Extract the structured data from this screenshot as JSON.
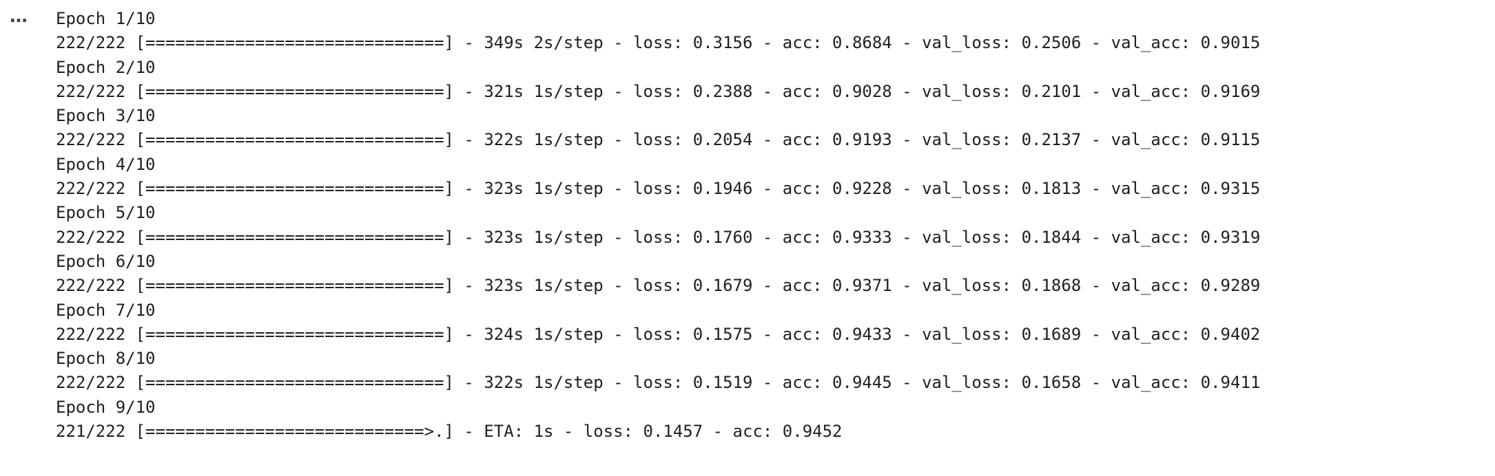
{
  "cell": {
    "collapse_glyph": "…"
  },
  "output_lines": [
    "Epoch 1/10",
    "222/222 [==============================] - 349s 2s/step - loss: 0.3156 - acc: 0.8684 - val_loss: 0.2506 - val_acc: 0.9015",
    "Epoch 2/10",
    "222/222 [==============================] - 321s 1s/step - loss: 0.2388 - acc: 0.9028 - val_loss: 0.2101 - val_acc: 0.9169",
    "Epoch 3/10",
    "222/222 [==============================] - 322s 1s/step - loss: 0.2054 - acc: 0.9193 - val_loss: 0.2137 - val_acc: 0.9115",
    "Epoch 4/10",
    "222/222 [==============================] - 323s 1s/step - loss: 0.1946 - acc: 0.9228 - val_loss: 0.1813 - val_acc: 0.9315",
    "Epoch 5/10",
    "222/222 [==============================] - 323s 1s/step - loss: 0.1760 - acc: 0.9333 - val_loss: 0.1844 - val_acc: 0.9319",
    "Epoch 6/10",
    "222/222 [==============================] - 323s 1s/step - loss: 0.1679 - acc: 0.9371 - val_loss: 0.1868 - val_acc: 0.9289",
    "Epoch 7/10",
    "222/222 [==============================] - 324s 1s/step - loss: 0.1575 - acc: 0.9433 - val_loss: 0.1689 - val_acc: 0.9402",
    "Epoch 8/10",
    "222/222 [==============================] - 322s 1s/step - loss: 0.1519 - acc: 0.9445 - val_loss: 0.1658 - val_acc: 0.9411",
    "Epoch 9/10",
    "221/222 [============================>.] - ETA: 1s - loss: 0.1457 - acc: 0.9452"
  ]
}
